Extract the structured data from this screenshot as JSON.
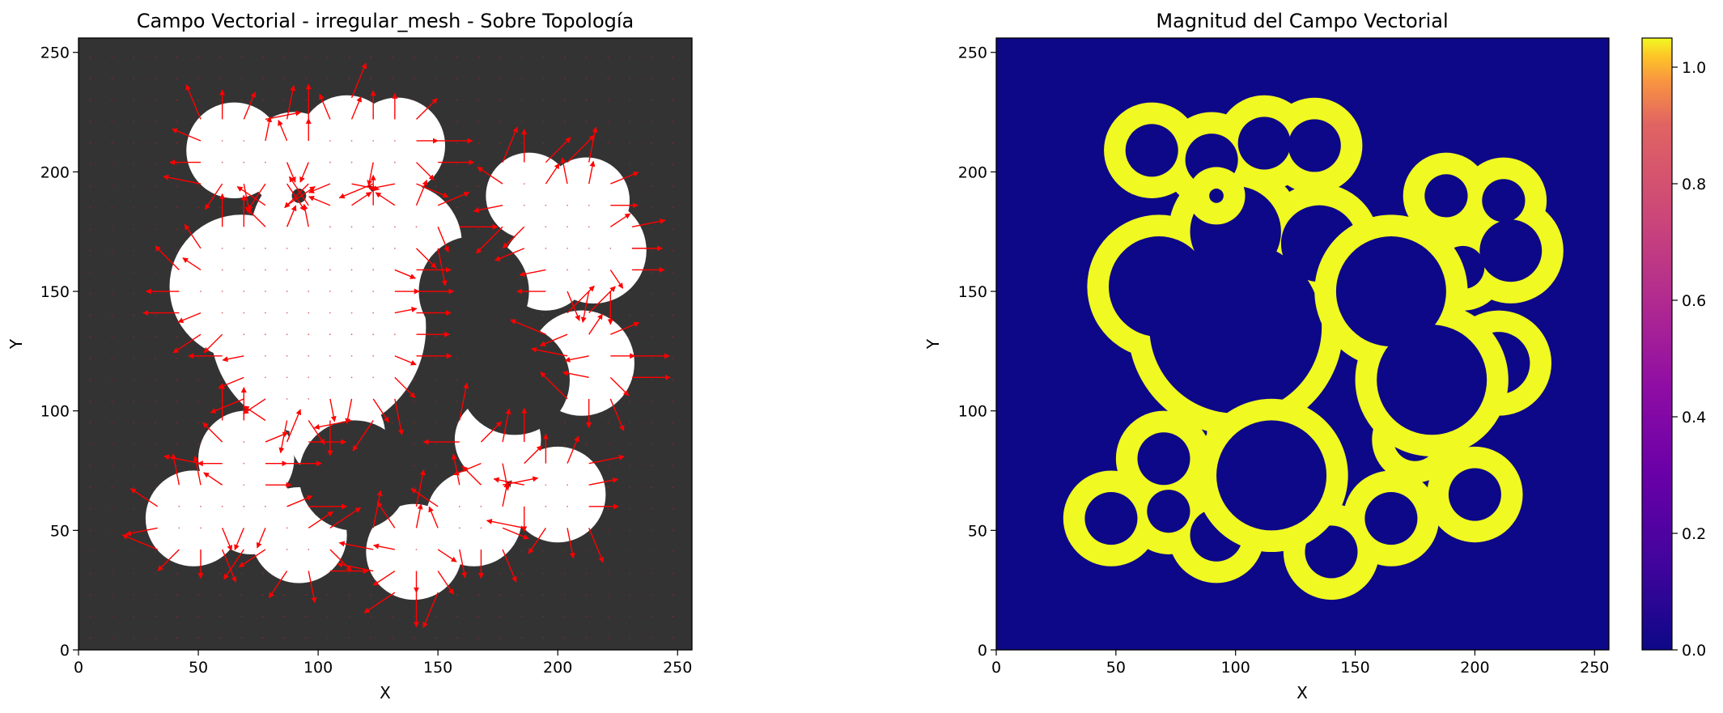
{
  "chart_data": [
    {
      "type": "quiver",
      "title": "Campo Vectorial - irregular_mesh - Sobre Topología",
      "xlabel": "X",
      "ylabel": "Y",
      "xlim": [
        0,
        256
      ],
      "ylim": [
        0,
        256
      ],
      "x_ticks": [
        0,
        50,
        100,
        150,
        200,
        250
      ],
      "y_ticks": [
        0,
        50,
        100,
        150,
        200,
        250
      ],
      "background_color": "#333333",
      "region_color": "#ffffff",
      "arrow_color": "#ff0000",
      "circles": [
        {
          "cx": 65,
          "cy": 209,
          "r": 20
        },
        {
          "cx": 90,
          "cy": 205,
          "r": 20
        },
        {
          "cx": 112,
          "cy": 212,
          "r": 20
        },
        {
          "cx": 133,
          "cy": 211,
          "r": 20
        },
        {
          "cx": 100,
          "cy": 175,
          "r": 28
        },
        {
          "cx": 68,
          "cy": 152,
          "r": 30
        },
        {
          "cx": 100,
          "cy": 135,
          "r": 45
        },
        {
          "cx": 135,
          "cy": 170,
          "r": 25
        },
        {
          "cx": 188,
          "cy": 190,
          "r": 18
        },
        {
          "cx": 212,
          "cy": 188,
          "r": 18
        },
        {
          "cx": 215,
          "cy": 167,
          "r": 22
        },
        {
          "cx": 195,
          "cy": 160,
          "r": 18
        },
        {
          "cx": 210,
          "cy": 120,
          "r": 22
        },
        {
          "cx": 70,
          "cy": 80,
          "r": 20
        },
        {
          "cx": 48,
          "cy": 55,
          "r": 20
        },
        {
          "cx": 72,
          "cy": 58,
          "r": 18
        },
        {
          "cx": 92,
          "cy": 48,
          "r": 20
        },
        {
          "cx": 108,
          "cy": 90,
          "r": 20
        },
        {
          "cx": 140,
          "cy": 41,
          "r": 20
        },
        {
          "cx": 165,
          "cy": 55,
          "r": 20
        },
        {
          "cx": 175,
          "cy": 88,
          "r": 18
        },
        {
          "cx": 200,
          "cy": 65,
          "r": 20
        }
      ],
      "holes": [
        {
          "cx": 165,
          "cy": 150,
          "r": 23
        },
        {
          "cx": 182,
          "cy": 113,
          "r": 23
        },
        {
          "cx": 115,
          "cy": 73,
          "r": 23
        },
        {
          "cx": 92,
          "cy": 190,
          "r": 3
        }
      ]
    },
    {
      "type": "heatmap",
      "title": "Magnitud del Campo Vectorial",
      "xlabel": "X",
      "ylabel": "Y",
      "xlim": [
        0,
        256
      ],
      "ylim": [
        0,
        256
      ],
      "x_ticks": [
        0,
        50,
        100,
        150,
        200,
        250
      ],
      "y_ticks": [
        0,
        50,
        100,
        150,
        200,
        250
      ],
      "colormap": "plasma",
      "background_color": "#0d0887",
      "band_color": "#f0f921",
      "band_width": 9,
      "colorbar": {
        "range": [
          0,
          1.05
        ],
        "ticks": [
          "0.0",
          "0.2",
          "0.4",
          "0.6",
          "0.8",
          "1.0"
        ],
        "tick_values": [
          0,
          0.2,
          0.4,
          0.6,
          0.8,
          1.0
        ],
        "placement": "right"
      }
    }
  ]
}
